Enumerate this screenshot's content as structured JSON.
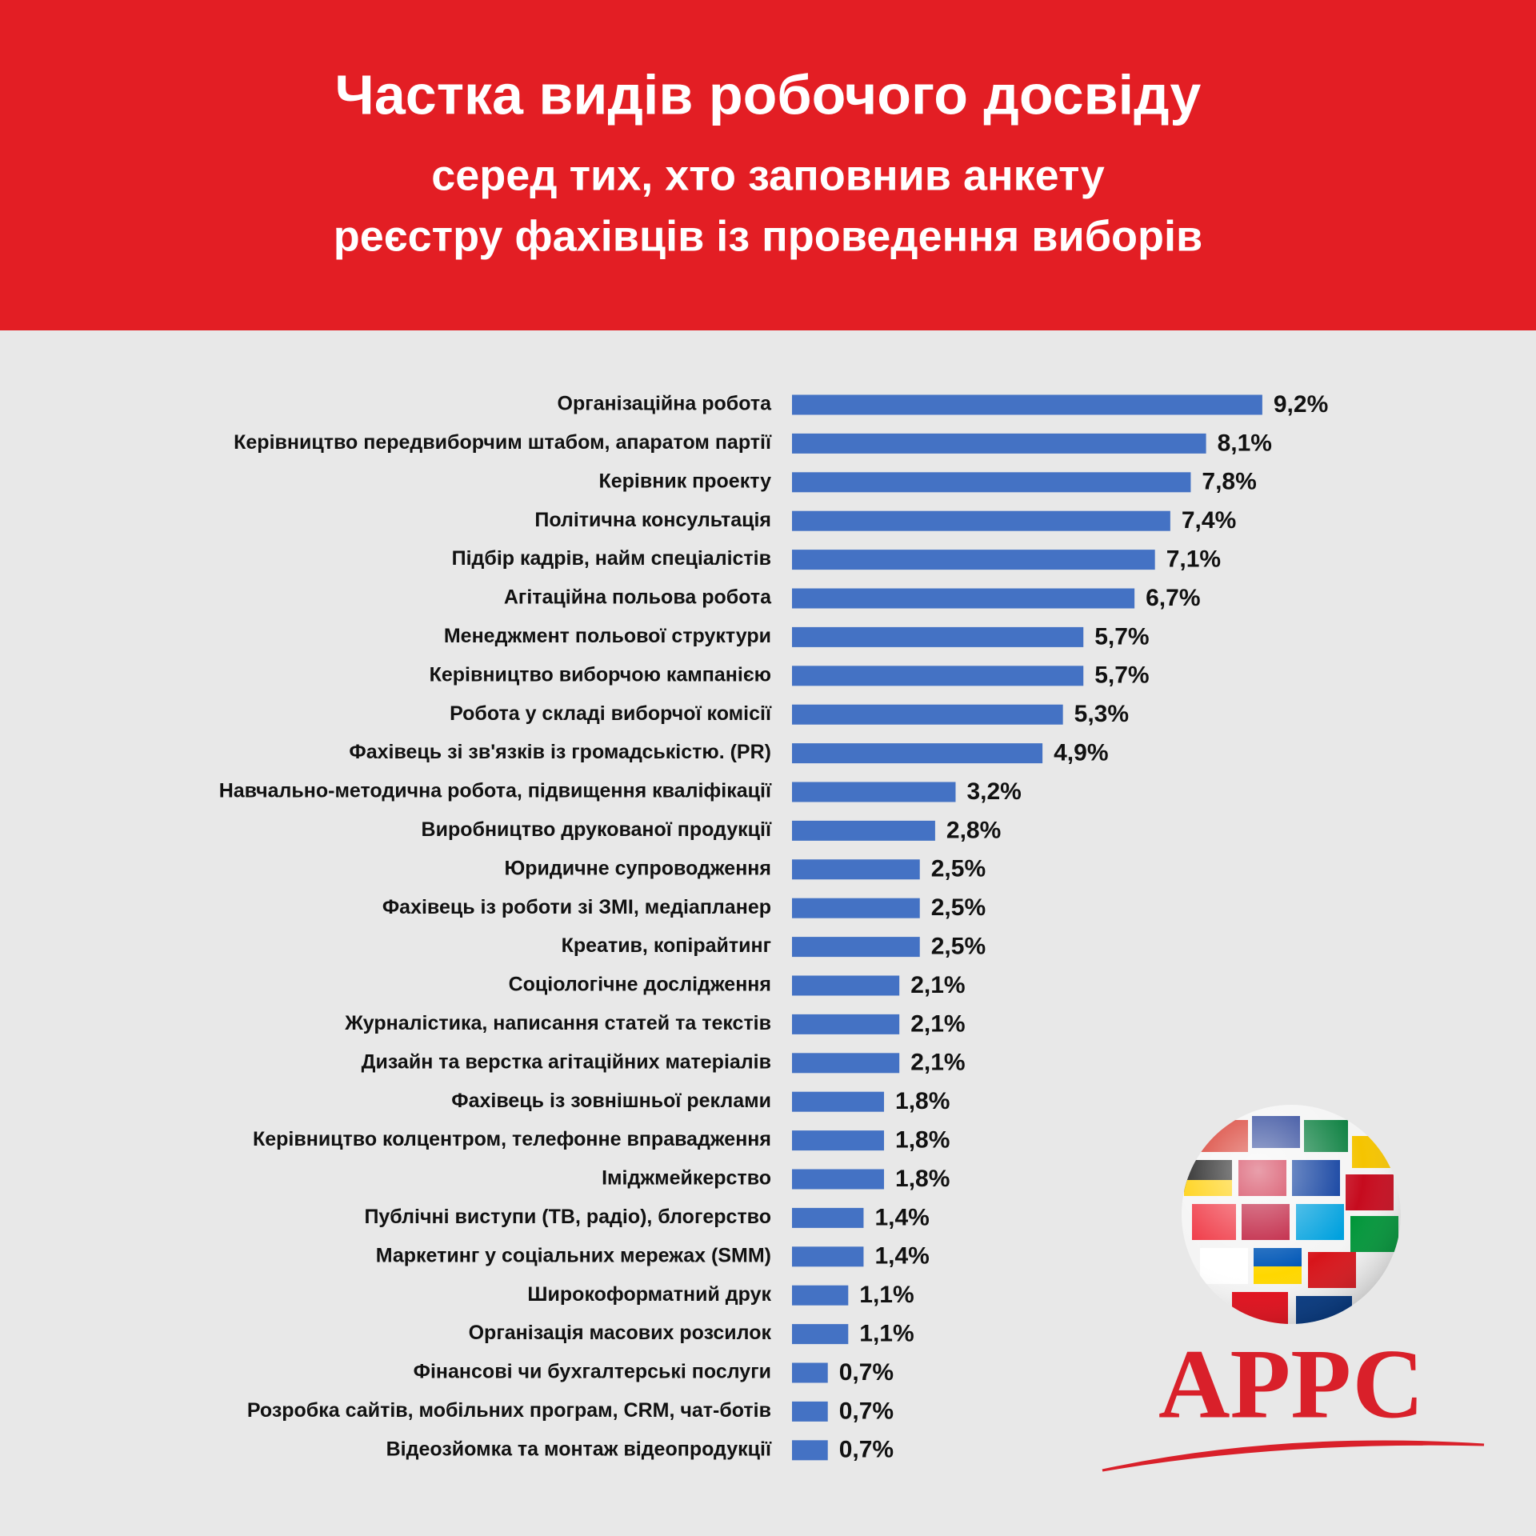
{
  "chart_data": {
    "type": "bar",
    "title": "Частка видів робочого досвіду",
    "subtitle": [
      "серед тих, хто заповнив анкету",
      "реєстру фахівців із проведення виборів"
    ],
    "categories": [
      "Організаційна робота",
      "Керівництво передвиборчим штабом, апаратом партії",
      "Керівник проекту",
      "Політична консультація",
      "Підбір кадрів, найм спеціалістів",
      "Агітаційна польова робота",
      "Менеджмент польової структури",
      "Керівництво виборчою кампанією",
      "Робота у складі виборчої комісії",
      "Фахівець зі зв'язків із громадськістю. (PR)",
      "Навчально-методична робота, підвищення кваліфікації",
      "Виробництво друкованої продукції",
      "Юридичне супроводження",
      "Фахівець із роботи зі ЗМІ, медіапланер",
      "Креатив, копірайтинг",
      "Соціологічне дослідження",
      "Журналістика, написання статей та текстів",
      "Дизайн та верстка агітаційних матеріалів",
      "Фахівець із зовнішньої реклами",
      "Керівництво колцентром, телефонне вправадження",
      "Іміджмейкерство",
      "Публічні виступи (ТВ, радіо), блогерство",
      "Маркетинг у соціальних мережах (SMM)",
      "Широкоформатний друк",
      "Організація масових розсилок",
      "Фінансові чи бухгалтерські послуги",
      "Розробка сайтів, мобільних програм, CRM, чат-ботів",
      "Відеозйомка та монтаж відеопродукції"
    ],
    "values": [
      9.2,
      8.1,
      7.8,
      7.4,
      7.1,
      6.7,
      5.7,
      5.7,
      5.3,
      4.9,
      3.2,
      2.8,
      2.5,
      2.5,
      2.5,
      2.1,
      2.1,
      2.1,
      1.8,
      1.8,
      1.8,
      1.4,
      1.4,
      1.1,
      1.1,
      0.7,
      0.7,
      0.7
    ],
    "value_labels": [
      "9,2%",
      "8,1%",
      "7,8%",
      "7,4%",
      "7,1%",
      "6,7%",
      "5,7%",
      "5,7%",
      "5,3%",
      "4,9%",
      "3,2%",
      "2,8%",
      "2,5%",
      "2,5%",
      "2,5%",
      "2,1%",
      "2,1%",
      "2,1%",
      "1,8%",
      "1,8%",
      "1,8%",
      "1,4%",
      "1,4%",
      "1,1%",
      "1,1%",
      "0,7%",
      "0,7%",
      "0,7%"
    ],
    "color": "#4472c4"
  },
  "logo": {
    "text": "АРРС"
  }
}
